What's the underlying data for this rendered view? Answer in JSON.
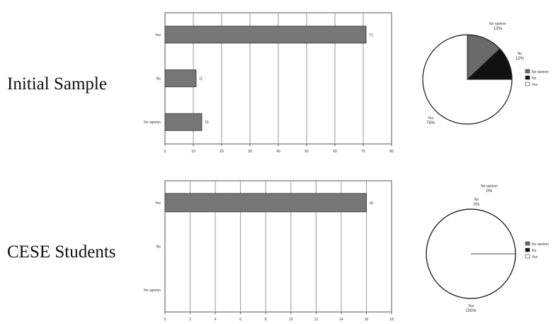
{
  "rows": [
    {
      "label": "Initial Sample"
    },
    {
      "label": "CESE Students"
    }
  ],
  "chart_data": [
    {
      "type": "bar",
      "orientation": "horizontal",
      "categories": [
        "Yes",
        "No",
        "No opinion"
      ],
      "values": [
        71,
        11,
        13
      ],
      "data_labels": [
        "71",
        "11",
        "13"
      ],
      "xlim": [
        0,
        80
      ],
      "xticks": [
        "0",
        "10",
        "20",
        "30",
        "40",
        "50",
        "60",
        "70",
        "80"
      ],
      "grid": true,
      "bar_color": "#777777"
    },
    {
      "type": "pie",
      "labels": [
        "No opinion",
        "No",
        "Yes"
      ],
      "percent_labels": [
        "13%",
        "12%",
        "75%"
      ],
      "values": [
        13,
        12,
        75
      ],
      "colors": [
        "#6a6a6a",
        "#111111",
        "#ffffff"
      ],
      "legend": [
        "No opinion",
        "No",
        "Yes"
      ],
      "legend_position": "right"
    },
    {
      "type": "bar",
      "orientation": "horizontal",
      "categories": [
        "Yes",
        "No",
        "No opinion"
      ],
      "values": [
        16,
        0,
        0
      ],
      "data_labels": [
        "16"
      ],
      "xlim": [
        0,
        18
      ],
      "xticks": [
        "0",
        "2",
        "4",
        "6",
        "8",
        "10",
        "12",
        "14",
        "16",
        "18"
      ],
      "grid": true,
      "bar_color": "#777777"
    },
    {
      "type": "pie",
      "labels": [
        "No opinion",
        "No",
        "Yes"
      ],
      "percent_labels": [
        "0%",
        "0%",
        "100%"
      ],
      "values": [
        0,
        0,
        100
      ],
      "colors": [
        "#6a6a6a",
        "#111111",
        "#ffffff"
      ],
      "legend": [
        "No opinion",
        "No",
        "Yes"
      ],
      "legend_position": "right"
    }
  ]
}
